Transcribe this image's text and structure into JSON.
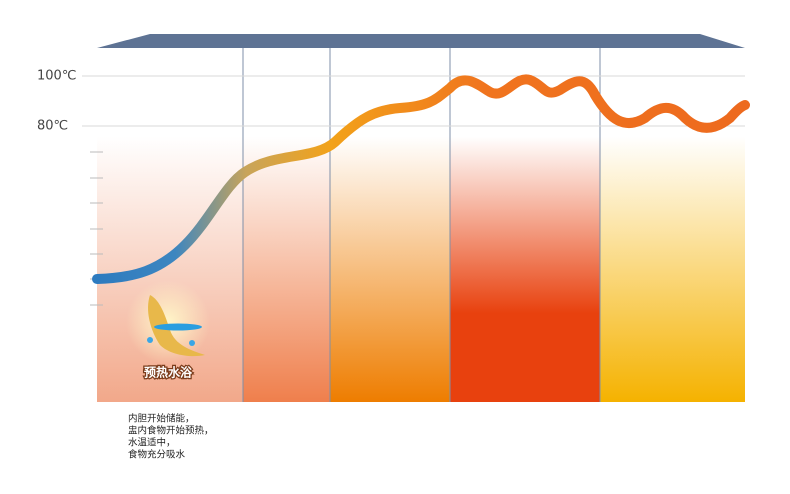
{
  "axis_labels": [
    "100℃",
    "80℃"
  ],
  "badge": "预热水浴",
  "caption": [
    "内胆开始储能，",
    "盅内食物开始预热，",
    "水温适中，",
    "食物充分吸水"
  ]
}
